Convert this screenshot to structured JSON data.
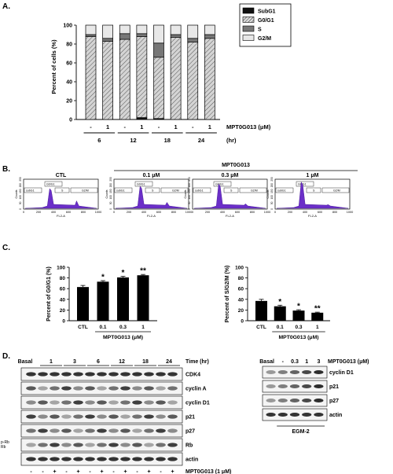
{
  "panels": {
    "A": {
      "label": "A."
    },
    "B": {
      "label": "B."
    },
    "C": {
      "label": "C."
    },
    "D": {
      "label": "D."
    }
  },
  "chart_data": [
    {
      "id": "A",
      "type": "bar",
      "stacked": true,
      "ylabel": "Percent of cells (%)",
      "ylim": [
        0,
        100
      ],
      "yticks": [
        "0",
        "20",
        "40",
        "60",
        "80",
        "100"
      ],
      "treatment_row": {
        "label": "MPT0G013 (μM)",
        "values": [
          "-",
          "1",
          "-",
          "1",
          "-",
          "1",
          "-",
          "1"
        ]
      },
      "time_row": {
        "label": "(hr)",
        "values": [
          "6",
          "12",
          "18",
          "24"
        ]
      },
      "legend": [
        "SubG1",
        "G0/G1",
        "S",
        "G2/M"
      ],
      "series": [
        {
          "name": "SubG1",
          "color": "#111111",
          "values": [
            0,
            0,
            0,
            2,
            1,
            0,
            0,
            0
          ]
        },
        {
          "name": "G0/G1",
          "pattern": "hatch",
          "values": [
            88,
            83,
            85,
            86,
            65,
            87,
            82,
            86
          ]
        },
        {
          "name": "S",
          "color": "#777777",
          "values": [
            2,
            3,
            6,
            3,
            15,
            3,
            4,
            4
          ]
        },
        {
          "name": "G2/M",
          "color": "#e8e8e8",
          "values": [
            10,
            14,
            9,
            9,
            19,
            10,
            14,
            10
          ]
        }
      ]
    },
    {
      "id": "B",
      "type": "histogram-set",
      "group_label": "MPT0G013",
      "axis_x": "FL2-A",
      "axis_y": "Counts",
      "x_ticks": [
        "0",
        "200",
        "400",
        "600",
        "800",
        "1000"
      ],
      "y_ticks": [
        "0",
        "50",
        "100",
        "150",
        "200",
        "250"
      ],
      "gate_labels": [
        "G0/G1",
        "S",
        "G2/M",
        "subG1"
      ],
      "panels": [
        {
          "label": "CTL"
        },
        {
          "label": "0.1 μM"
        },
        {
          "label": "0.3 μM"
        },
        {
          "label": "1 μM"
        }
      ]
    },
    {
      "id": "C-left",
      "type": "bar",
      "ylabel": "Percent of G0/G1 (%)",
      "ylim": [
        0,
        100
      ],
      "yticks": [
        "0",
        "20",
        "40",
        "60",
        "80",
        "100"
      ],
      "categories": [
        "CTL",
        "0.1",
        "0.3",
        "1"
      ],
      "values": [
        63,
        73,
        81,
        85
      ],
      "errors": [
        3,
        2,
        2,
        1.5
      ],
      "significance": [
        "",
        "*",
        "*",
        "**"
      ],
      "xlabel": "MPT0G013 (μM)"
    },
    {
      "id": "C-right",
      "type": "bar",
      "ylabel": "Percent of S/G2/M (%)",
      "ylim": [
        0,
        100
      ],
      "yticks": [
        "0",
        "20",
        "40",
        "60",
        "80",
        "100"
      ],
      "categories": [
        "CTL",
        "0.1",
        "0.3",
        "1"
      ],
      "values": [
        37,
        27,
        19,
        15
      ],
      "errors": [
        3,
        2,
        1.5,
        1
      ],
      "significance": [
        "",
        "*",
        "*",
        "**"
      ],
      "xlabel": "MPT0G013 (μM)"
    },
    {
      "id": "D-left",
      "type": "western-blot",
      "time_label": "Time (hr)",
      "basal_label": "Basal",
      "time_points": [
        "1",
        "3",
        "6",
        "12",
        "18",
        "24"
      ],
      "rows": [
        "CDK4",
        "cyclin A",
        "cyclin D1",
        "p21",
        "p27",
        "Rb",
        "actin"
      ],
      "rb_labels": [
        "p-Rb",
        "Rb"
      ],
      "treatment_signs": [
        "-",
        "-",
        "+",
        "-",
        "+",
        "-",
        "+",
        "-",
        "+",
        "-",
        "+",
        "-",
        "+"
      ],
      "treatment_label": "MPT0G013 (1 μM)",
      "medium_label": "EGM-2"
    },
    {
      "id": "D-right",
      "type": "western-blot",
      "header_labels": [
        "Basal",
        "-",
        "0.3",
        "1",
        "3"
      ],
      "header_unit": "MPT0G013 (μM)",
      "rows": [
        "cyclin D1",
        "p21",
        "p27",
        "actin"
      ],
      "medium_label": "EGM-2"
    }
  ]
}
